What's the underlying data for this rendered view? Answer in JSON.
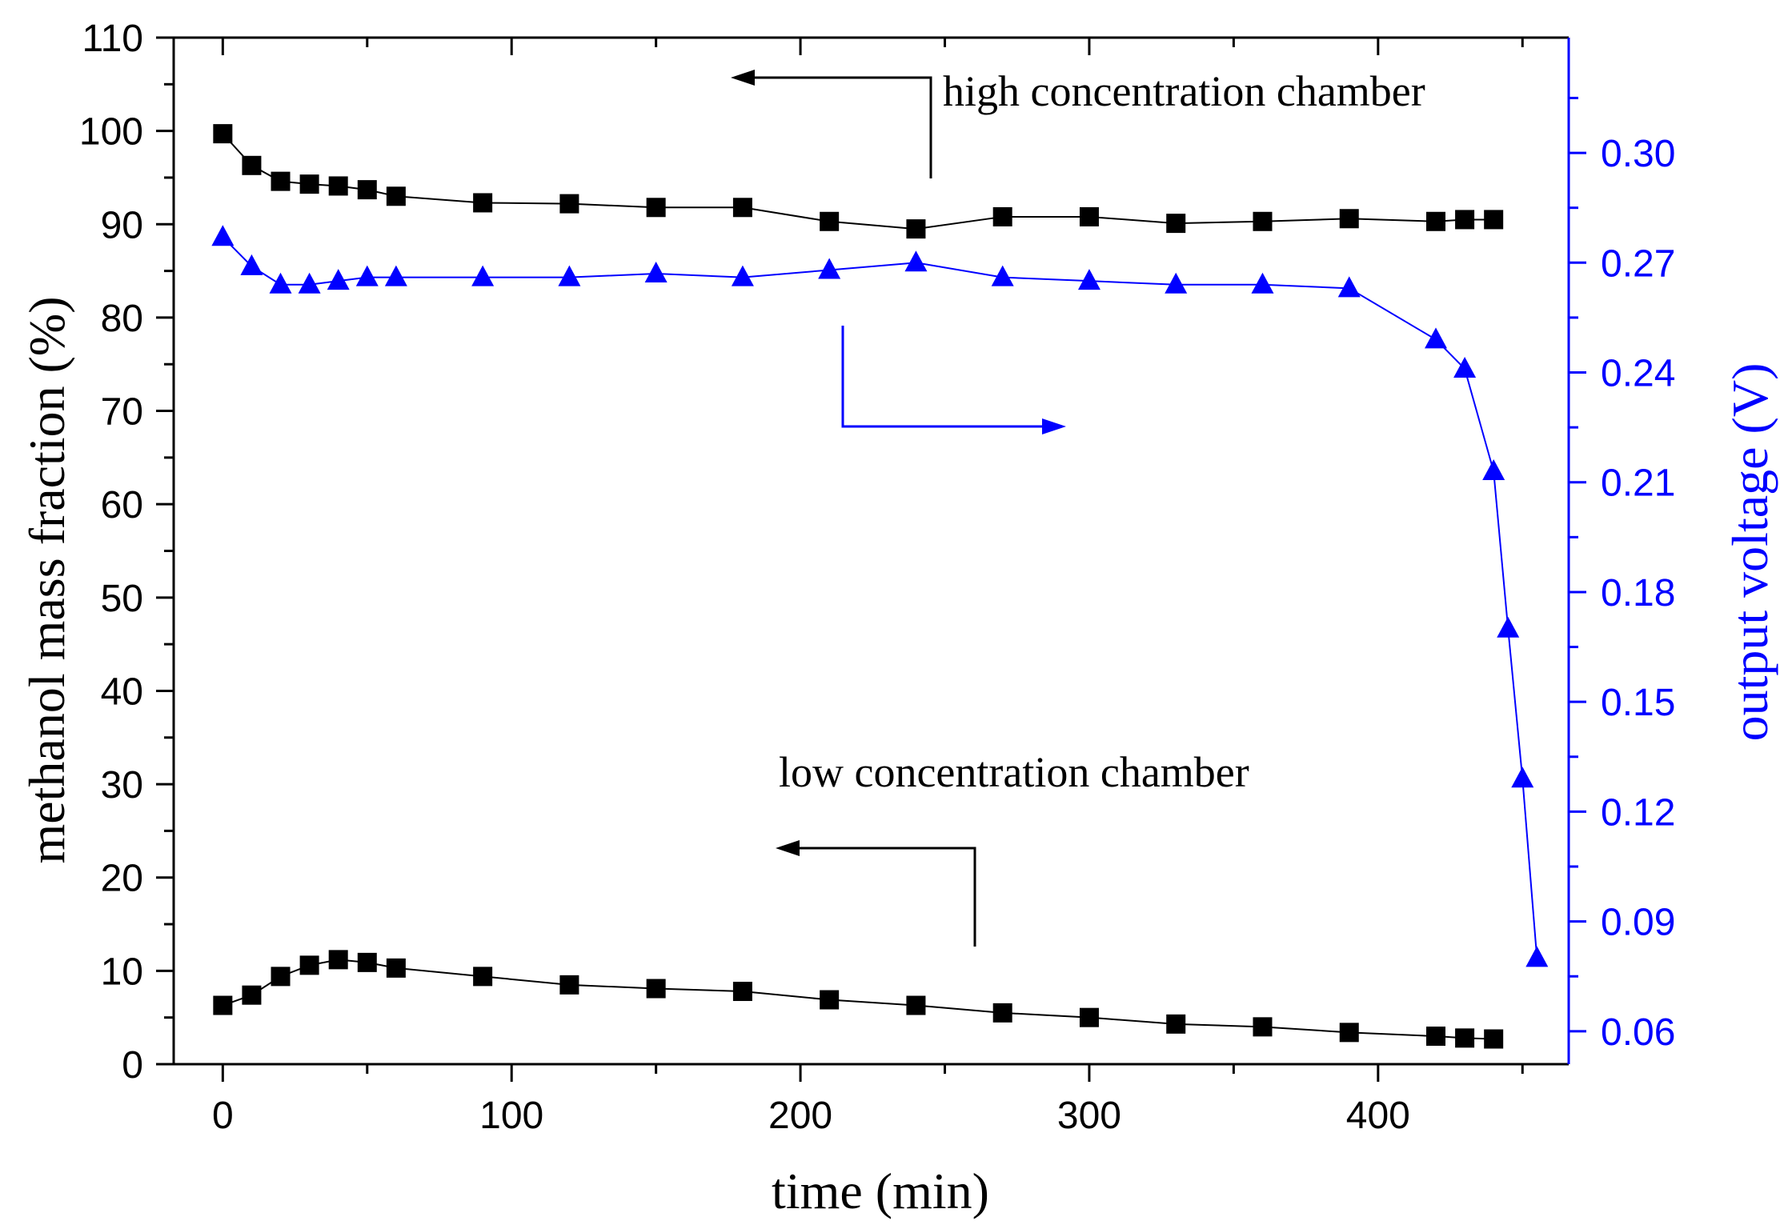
{
  "chart_data": {
    "type": "line",
    "title": "",
    "xlabel": "time (min)",
    "ylabel": "methanol mass fraction (%)",
    "y2label": "output voltage (V)",
    "xlim": [
      -17,
      466
    ],
    "ylim": [
      0,
      110
    ],
    "y2lim": [
      0.051,
      0.3315
    ],
    "xticks": [
      "0",
      "100",
      "200",
      "300",
      "400"
    ],
    "yticks": [
      "0",
      "10",
      "20",
      "30",
      "40",
      "50",
      "60",
      "70",
      "80",
      "90",
      "100",
      "110"
    ],
    "y2ticks": [
      "0.06",
      "0.09",
      "0.12",
      "0.15",
      "0.18",
      "0.21",
      "0.24",
      "0.27",
      "0.30"
    ],
    "colors": {
      "axis": "#000000",
      "high": "#000000",
      "low": "#000000",
      "voltage": "#0000ff"
    },
    "series": [
      {
        "name": "high concentration chamber",
        "axis": "left",
        "marker": "square",
        "x": [
          0,
          10,
          20,
          30,
          40,
          50,
          60,
          90,
          120,
          150,
          180,
          210,
          240,
          270,
          300,
          330,
          360,
          390,
          420,
          430,
          440
        ],
        "values": [
          99.7,
          96.3,
          94.6,
          94.3,
          94.1,
          93.7,
          93.0,
          92.3,
          92.2,
          91.8,
          91.8,
          90.3,
          89.5,
          90.8,
          90.8,
          90.1,
          90.3,
          90.6,
          90.3,
          90.5,
          90.5
        ]
      },
      {
        "name": "low concentration chamber",
        "axis": "left",
        "marker": "square",
        "x": [
          0,
          10,
          20,
          30,
          40,
          50,
          60,
          90,
          120,
          150,
          180,
          210,
          240,
          270,
          300,
          330,
          360,
          390,
          420,
          430,
          440
        ],
        "values": [
          6.3,
          7.4,
          9.4,
          10.6,
          11.2,
          10.9,
          10.3,
          9.4,
          8.5,
          8.1,
          7.8,
          6.9,
          6.3,
          5.5,
          5.0,
          4.3,
          4.0,
          3.4,
          3.0,
          2.8,
          2.7
        ]
      },
      {
        "name": "output voltage",
        "axis": "right",
        "marker": "triangle",
        "x": [
          0,
          10,
          20,
          30,
          40,
          50,
          60,
          90,
          120,
          150,
          180,
          210,
          240,
          270,
          300,
          330,
          360,
          390,
          420,
          430,
          440,
          445,
          450,
          455
        ],
        "values": [
          0.277,
          0.269,
          0.264,
          0.264,
          0.265,
          0.266,
          0.266,
          0.266,
          0.266,
          0.267,
          0.266,
          0.268,
          0.27,
          0.266,
          0.265,
          0.264,
          0.264,
          0.263,
          0.249,
          0.241,
          0.213,
          0.17,
          0.129,
          0.08
        ]
      }
    ],
    "annotations": [
      {
        "text": "high concentration chamber",
        "arrow_to": "left axis"
      },
      {
        "text": "low concentration chamber",
        "arrow_to": "left axis"
      },
      {
        "text": "",
        "arrow_to": "right axis"
      }
    ]
  }
}
